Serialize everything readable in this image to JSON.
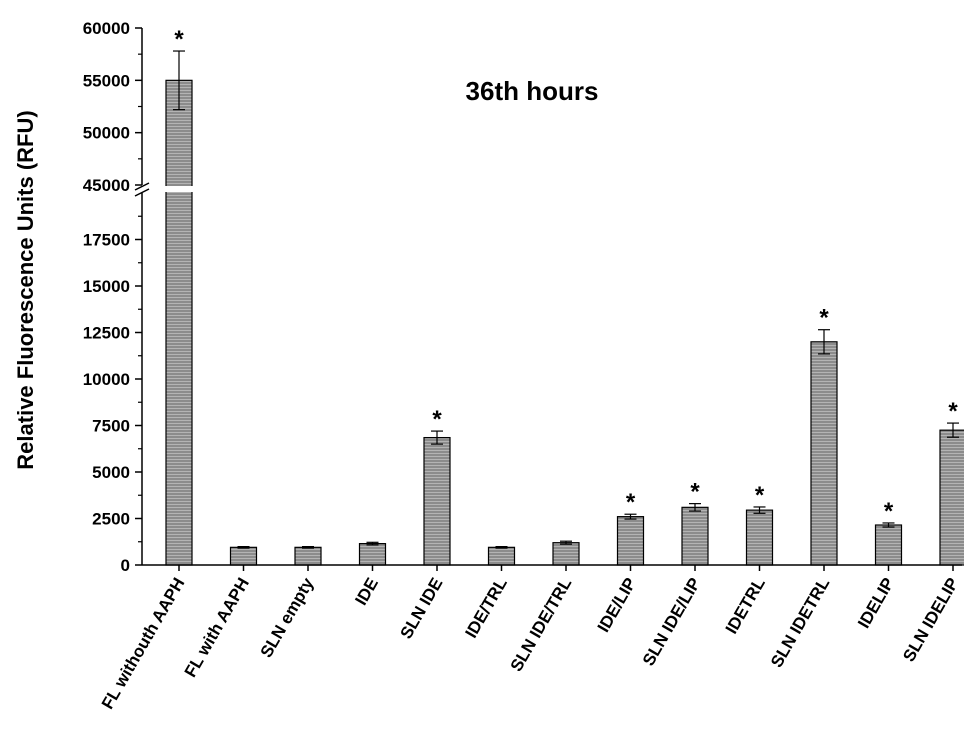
{
  "chart_data": {
    "type": "bar",
    "title": "36th hours",
    "ylabel": "Relative Fluorescence Units (RFU)",
    "xlabel": "",
    "ylim_lower": [
      0,
      20000
    ],
    "ylim_upper": [
      45000,
      60000
    ],
    "axis_break": [
      20000,
      45000
    ],
    "yticks_lower": [
      "0",
      "2500",
      "5000",
      "7500",
      "10000",
      "12500",
      "15000",
      "17500"
    ],
    "yticks_upper": [
      "45000",
      "50000",
      "55000",
      "60000"
    ],
    "categories": [
      "FL withouth AAPH",
      "FL with AAPH",
      "SLN empty",
      "IDE",
      "SLN IDE",
      "IDE/TRL",
      "SLN IDE/TRL",
      "IDE/LIP",
      "SLN IDE/LIP",
      "IDETRL",
      "SLN IDETRL",
      "IDELIP",
      "SLN IDELIP"
    ],
    "values": [
      55000,
      950,
      950,
      1150,
      6850,
      950,
      1200,
      2600,
      3100,
      2950,
      12000,
      2150,
      7250
    ],
    "errors": [
      2800,
      40,
      40,
      70,
      350,
      40,
      80,
      130,
      200,
      170,
      650,
      110,
      380
    ],
    "significance": [
      "*",
      "",
      "",
      "",
      "*",
      "",
      "",
      "*",
      "*",
      "*",
      "*",
      "*",
      "*"
    ],
    "bar_color": "#8c8c8c",
    "grid": false
  }
}
